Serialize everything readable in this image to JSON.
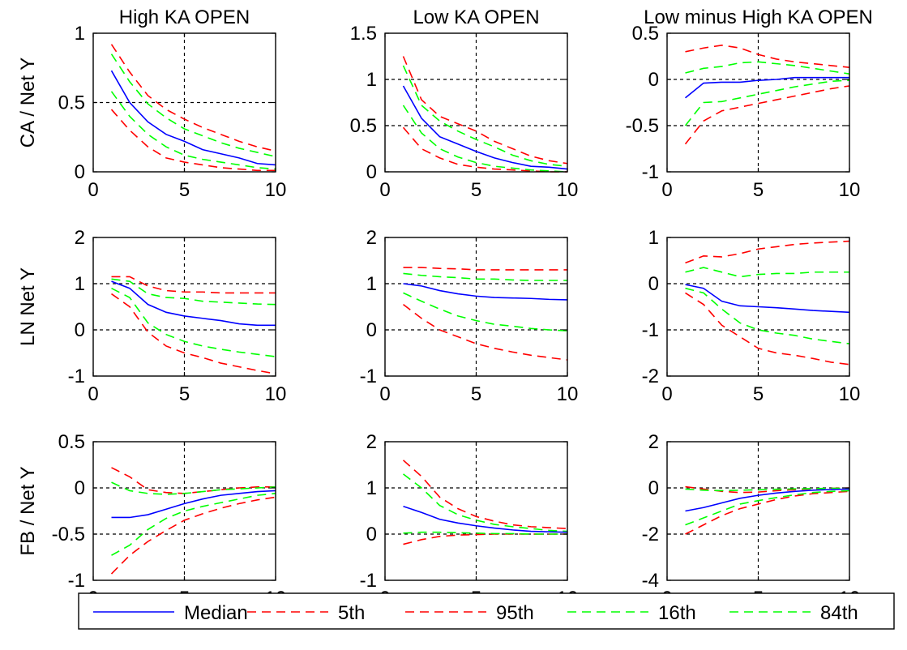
{
  "chart_data": {
    "type": "line",
    "x": [
      1,
      2,
      3,
      4,
      5,
      6,
      7,
      8,
      9,
      10
    ],
    "xlim": [
      0,
      10
    ],
    "xticks": [
      "0",
      "5",
      "10"
    ],
    "grid": "dashed reference lines at x = 5 and at interior y ticks",
    "legend": {
      "placement": "bottom",
      "entries": [
        {
          "label": "Median",
          "color": "#0000ff",
          "style": "solid"
        },
        {
          "label": "5th",
          "color": "#ff0000",
          "style": "dashed"
        },
        {
          "label": "95th",
          "color": "#ff0000",
          "style": "dashed"
        },
        {
          "label": "16th",
          "color": "#00ff00",
          "style": "dashed"
        },
        {
          "label": "84th",
          "color": "#00ff00",
          "style": "dashed"
        }
      ]
    },
    "panels": [
      {
        "title": "High KA OPEN",
        "ylabel": "CA / Net Y",
        "ylim": [
          0,
          1
        ],
        "yticks": [
          "0",
          "0.5",
          "1"
        ],
        "series": [
          {
            "key": "p5",
            "values": [
              0.45,
              0.3,
              0.18,
              0.1,
              0.07,
              0.05,
              0.03,
              0.02,
              0.01,
              0.01
            ]
          },
          {
            "key": "p95",
            "values": [
              0.92,
              0.72,
              0.55,
              0.45,
              0.38,
              0.32,
              0.27,
              0.22,
              0.18,
              0.15
            ]
          },
          {
            "key": "p16",
            "values": [
              0.58,
              0.4,
              0.27,
              0.18,
              0.12,
              0.09,
              0.07,
              0.05,
              0.03,
              0.02
            ]
          },
          {
            "key": "p84",
            "values": [
              0.85,
              0.65,
              0.49,
              0.39,
              0.31,
              0.26,
              0.21,
              0.17,
              0.14,
              0.11
            ]
          },
          {
            "key": "median",
            "values": [
              0.73,
              0.5,
              0.36,
              0.27,
              0.22,
              0.16,
              0.13,
              0.1,
              0.06,
              0.05
            ]
          }
        ]
      },
      {
        "title": "Low KA OPEN",
        "ylabel": "",
        "ylim": [
          0,
          1.5
        ],
        "yticks": [
          "0",
          "0.5",
          "1",
          "1.5"
        ],
        "series": [
          {
            "key": "p5",
            "values": [
              0.48,
              0.25,
              0.15,
              0.08,
              0.05,
              0.03,
              0.02,
              0.01,
              0.0,
              0.0
            ]
          },
          {
            "key": "p95",
            "values": [
              1.25,
              0.78,
              0.6,
              0.52,
              0.44,
              0.33,
              0.25,
              0.17,
              0.12,
              0.09
            ]
          },
          {
            "key": "p16",
            "values": [
              0.72,
              0.42,
              0.25,
              0.16,
              0.1,
              0.06,
              0.04,
              0.02,
              0.01,
              0.0
            ]
          },
          {
            "key": "p84",
            "values": [
              1.15,
              0.72,
              0.55,
              0.44,
              0.35,
              0.27,
              0.18,
              0.12,
              0.08,
              0.06
            ]
          },
          {
            "key": "median",
            "values": [
              0.93,
              0.58,
              0.38,
              0.3,
              0.22,
              0.15,
              0.1,
              0.06,
              0.05,
              0.03
            ]
          }
        ]
      },
      {
        "title": "Low minus High KA OPEN",
        "ylabel": "",
        "ylim": [
          -1,
          0.5
        ],
        "yticks": [
          "-1",
          "-0.5",
          "0",
          "0.5"
        ],
        "series": [
          {
            "key": "p5",
            "values": [
              -0.7,
              -0.45,
              -0.34,
              -0.3,
              -0.26,
              -0.22,
              -0.18,
              -0.14,
              -0.1,
              -0.07
            ]
          },
          {
            "key": "p95",
            "values": [
              0.3,
              0.34,
              0.37,
              0.34,
              0.27,
              0.22,
              0.19,
              0.17,
              0.15,
              0.13
            ]
          },
          {
            "key": "p16",
            "values": [
              -0.5,
              -0.25,
              -0.24,
              -0.2,
              -0.16,
              -0.12,
              -0.08,
              -0.05,
              -0.02,
              -0.01
            ]
          },
          {
            "key": "p84",
            "values": [
              0.07,
              0.12,
              0.14,
              0.18,
              0.19,
              0.17,
              0.15,
              0.12,
              0.09,
              0.06
            ]
          },
          {
            "key": "median",
            "values": [
              -0.2,
              -0.04,
              -0.03,
              -0.03,
              -0.01,
              0.0,
              0.02,
              0.02,
              0.02,
              0.02
            ]
          }
        ]
      },
      {
        "title": "",
        "ylabel": "LN Net Y",
        "ylim": [
          -1,
          2
        ],
        "yticks": [
          "-1",
          "0",
          "1",
          "2"
        ],
        "series": [
          {
            "key": "p5",
            "values": [
              0.78,
              0.5,
              -0.05,
              -0.35,
              -0.5,
              -0.6,
              -0.72,
              -0.8,
              -0.88,
              -0.95
            ]
          },
          {
            "key": "p95",
            "values": [
              1.15,
              1.15,
              0.95,
              0.85,
              0.82,
              0.82,
              0.8,
              0.8,
              0.8,
              0.8
            ]
          },
          {
            "key": "p16",
            "values": [
              0.9,
              0.7,
              0.15,
              -0.1,
              -0.25,
              -0.35,
              -0.42,
              -0.48,
              -0.53,
              -0.58
            ]
          },
          {
            "key": "p84",
            "values": [
              1.1,
              1.05,
              0.78,
              0.7,
              0.68,
              0.62,
              0.6,
              0.58,
              0.56,
              0.55
            ]
          },
          {
            "key": "median",
            "values": [
              1.05,
              0.9,
              0.55,
              0.38,
              0.3,
              0.25,
              0.2,
              0.13,
              0.1,
              0.1
            ]
          }
        ]
      },
      {
        "title": "",
        "ylabel": "",
        "ylim": [
          -1,
          2
        ],
        "yticks": [
          "-1",
          "0",
          "1",
          "2"
        ],
        "series": [
          {
            "key": "p5",
            "values": [
              0.55,
              0.25,
              0.0,
              -0.15,
              -0.3,
              -0.4,
              -0.48,
              -0.55,
              -0.6,
              -0.65
            ]
          },
          {
            "key": "p95",
            "values": [
              1.35,
              1.35,
              1.33,
              1.32,
              1.3,
              1.3,
              1.3,
              1.3,
              1.3,
              1.3
            ]
          },
          {
            "key": "p16",
            "values": [
              0.8,
              0.62,
              0.45,
              0.3,
              0.2,
              0.12,
              0.08,
              0.03,
              0.0,
              -0.02
            ]
          },
          {
            "key": "p84",
            "values": [
              1.22,
              1.18,
              1.15,
              1.13,
              1.1,
              1.1,
              1.08,
              1.07,
              1.07,
              1.07
            ]
          },
          {
            "key": "median",
            "values": [
              1.0,
              0.95,
              0.85,
              0.78,
              0.73,
              0.7,
              0.69,
              0.68,
              0.66,
              0.65
            ]
          }
        ]
      },
      {
        "title": "",
        "ylabel": "",
        "ylim": [
          -2,
          1
        ],
        "yticks": [
          "-2",
          "-1",
          "0",
          "1"
        ],
        "series": [
          {
            "key": "p5",
            "values": [
              -0.2,
              -0.45,
              -0.9,
              -1.15,
              -1.4,
              -1.5,
              -1.55,
              -1.62,
              -1.7,
              -1.75
            ]
          },
          {
            "key": "p95",
            "values": [
              0.45,
              0.6,
              0.58,
              0.65,
              0.75,
              0.8,
              0.85,
              0.88,
              0.9,
              0.92
            ]
          },
          {
            "key": "p16",
            "values": [
              -0.1,
              -0.2,
              -0.55,
              -0.85,
              -1.0,
              -1.07,
              -1.12,
              -1.2,
              -1.25,
              -1.3
            ]
          },
          {
            "key": "p84",
            "values": [
              0.25,
              0.35,
              0.25,
              0.15,
              0.2,
              0.22,
              0.22,
              0.25,
              0.25,
              0.25
            ]
          },
          {
            "key": "median",
            "values": [
              -0.02,
              -0.1,
              -0.38,
              -0.48,
              -0.5,
              -0.52,
              -0.55,
              -0.58,
              -0.6,
              -0.62
            ]
          }
        ]
      },
      {
        "title": "",
        "ylabel": "FB / Net Y",
        "ylim": [
          -1,
          0.5
        ],
        "yticks": [
          "-1",
          "-0.5",
          "0",
          "0.5"
        ],
        "series": [
          {
            "key": "p5",
            "values": [
              -0.93,
              -0.73,
              -0.58,
              -0.46,
              -0.35,
              -0.28,
              -0.22,
              -0.17,
              -0.13,
              -0.1
            ]
          },
          {
            "key": "p95",
            "values": [
              0.22,
              0.12,
              -0.02,
              -0.05,
              -0.06,
              -0.04,
              -0.02,
              0.0,
              0.01,
              0.01
            ]
          },
          {
            "key": "p16",
            "values": [
              -0.73,
              -0.62,
              -0.45,
              -0.33,
              -0.25,
              -0.2,
              -0.16,
              -0.12,
              -0.08,
              -0.06
            ]
          },
          {
            "key": "p84",
            "values": [
              0.06,
              -0.03,
              -0.06,
              -0.07,
              -0.06,
              -0.04,
              -0.02,
              -0.01,
              0.0,
              0.01
            ]
          },
          {
            "key": "median",
            "values": [
              -0.32,
              -0.32,
              -0.29,
              -0.23,
              -0.17,
              -0.12,
              -0.08,
              -0.06,
              -0.04,
              -0.03
            ]
          }
        ]
      },
      {
        "title": "",
        "ylabel": "",
        "ylim": [
          -1,
          2
        ],
        "yticks": [
          "-1",
          "0",
          "1",
          "2"
        ],
        "series": [
          {
            "key": "p5",
            "values": [
              -0.22,
              -0.12,
              -0.05,
              -0.02,
              -0.01,
              0.0,
              0.0,
              0.0,
              0.0,
              0.0
            ]
          },
          {
            "key": "p95",
            "values": [
              1.6,
              1.25,
              0.8,
              0.55,
              0.38,
              0.28,
              0.2,
              0.16,
              0.14,
              0.12
            ]
          },
          {
            "key": "p16",
            "values": [
              0.02,
              0.04,
              0.04,
              0.03,
              0.02,
              0.01,
              0.01,
              0.0,
              0.0,
              0.0
            ]
          },
          {
            "key": "p84",
            "values": [
              1.3,
              1.0,
              0.62,
              0.42,
              0.3,
              0.21,
              0.16,
              0.12,
              0.08,
              0.06
            ]
          },
          {
            "key": "median",
            "values": [
              0.6,
              0.47,
              0.32,
              0.24,
              0.18,
              0.13,
              0.09,
              0.06,
              0.05,
              0.04
            ]
          }
        ]
      },
      {
        "title": "",
        "ylabel": "",
        "ylim": [
          -4,
          2
        ],
        "yticks": [
          "-4",
          "-2",
          "0",
          "2"
        ],
        "series": [
          {
            "key": "p5",
            "values": [
              -2.0,
              -1.6,
              -1.2,
              -0.9,
              -0.7,
              -0.5,
              -0.35,
              -0.25,
              -0.2,
              -0.15
            ]
          },
          {
            "key": "p95",
            "values": [
              0.05,
              -0.05,
              -0.15,
              -0.2,
              -0.18,
              -0.12,
              -0.08,
              -0.04,
              -0.02,
              0.0
            ]
          },
          {
            "key": "p16",
            "values": [
              -1.6,
              -1.3,
              -1.0,
              -0.7,
              -0.55,
              -0.42,
              -0.3,
              -0.2,
              -0.15,
              -0.12
            ]
          },
          {
            "key": "p84",
            "values": [
              -0.05,
              -0.1,
              -0.12,
              -0.1,
              -0.08,
              -0.06,
              -0.04,
              -0.03,
              -0.02,
              -0.02
            ]
          },
          {
            "key": "median",
            "values": [
              -1.0,
              -0.85,
              -0.65,
              -0.45,
              -0.32,
              -0.22,
              -0.15,
              -0.1,
              -0.07,
              -0.05
            ]
          }
        ]
      }
    ]
  }
}
